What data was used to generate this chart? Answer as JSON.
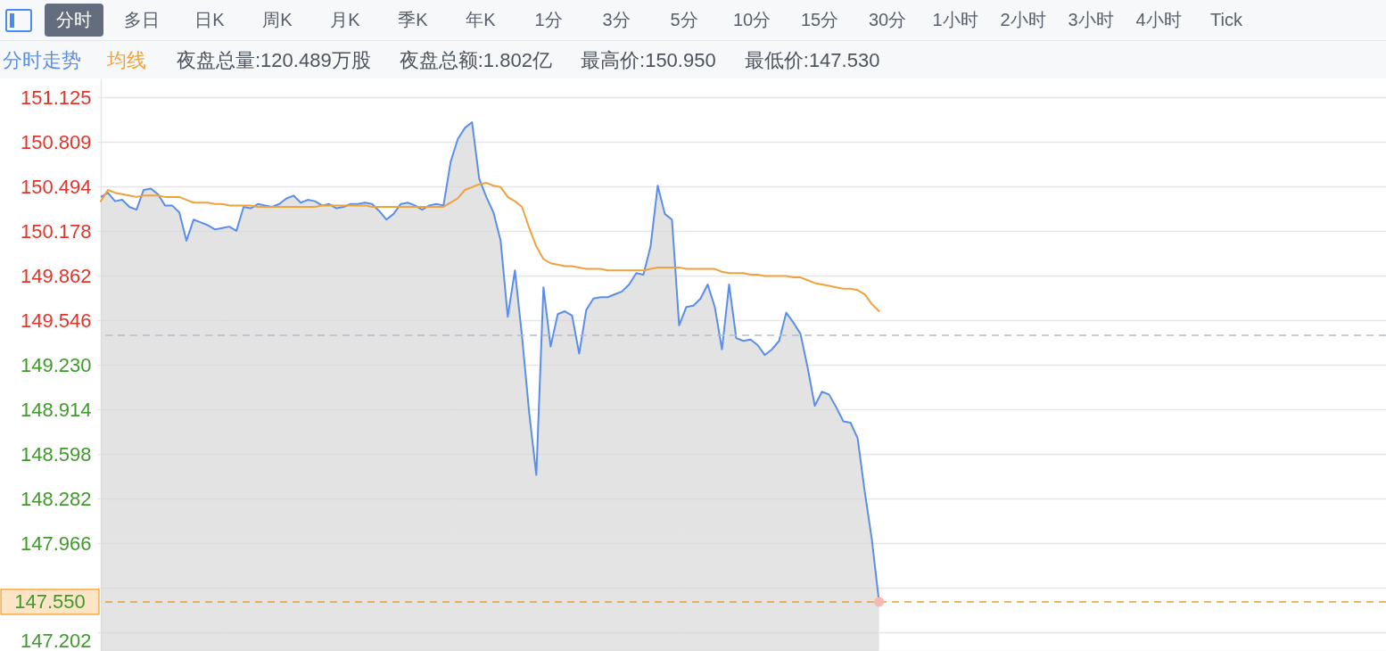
{
  "chart_data": {
    "type": "line",
    "subtitle": "夜盘总量:120.489万股 夜盘总额:1.802亿 最高价:150.950 最低价:147.530",
    "annotations": [
      "分时",
      "多日",
      "日K",
      "周K",
      "月K",
      "季K",
      "年K",
      "1分",
      "3分",
      "5分",
      "10分",
      "15分",
      "30分",
      "1小时",
      "2小时",
      "3小时",
      "4小时",
      "Tick"
    ],
    "categories": [
      null,
      null,
      null,
      null,
      null,
      null,
      null,
      null,
      null,
      null,
      null,
      null,
      null,
      null,
      null,
      null,
      null,
      null,
      null,
      null,
      null,
      null,
      null,
      null,
      null,
      null,
      null,
      null,
      null,
      null,
      null,
      null,
      null,
      null,
      null,
      null,
      null,
      null,
      null,
      null,
      null,
      null,
      null,
      null,
      null,
      null,
      null,
      null,
      null,
      null,
      null,
      null,
      null,
      null,
      null,
      null,
      null,
      null,
      null,
      null,
      null,
      null,
      null,
      null,
      null,
      null,
      null,
      null,
      null,
      null,
      null,
      null,
      null,
      null,
      null,
      null,
      null,
      null,
      null,
      null,
      null,
      null,
      null,
      null,
      null,
      null,
      null,
      null,
      null,
      null,
      null,
      null,
      null,
      null,
      null,
      null,
      null,
      null,
      null,
      null,
      null,
      null,
      null,
      null,
      null,
      null,
      null,
      null,
      null,
      null,
      null,
      null,
      null,
      null,
      null,
      null,
      null,
      null,
      null,
      null,
      null,
      null,
      null,
      null,
      null,
      null,
      null,
      null,
      null,
      null,
      null,
      null,
      null,
      null,
      null,
      null,
      null,
      null,
      null,
      null,
      null,
      null,
      null,
      null,
      null,
      null,
      null,
      null,
      null,
      null,
      null,
      null,
      null,
      null,
      null,
      null,
      null,
      null,
      null,
      null,
      null,
      null,
      null,
      null,
      null,
      null,
      null,
      null,
      null,
      null,
      null,
      null,
      null,
      null,
      null,
      null,
      null,
      null,
      null,
      null,
      null
    ],
    "series": [
      {
        "name": "分时走势",
        "type": "area",
        "color": "#5a8ee8",
        "values": [
          150.42,
          150.45,
          150.39,
          150.4,
          150.35,
          150.33,
          150.47,
          150.48,
          150.44,
          150.36,
          150.36,
          150.31,
          150.11,
          150.26,
          150.24,
          150.22,
          150.19,
          150.2,
          150.21,
          150.18,
          150.35,
          150.34,
          150.37,
          150.36,
          150.35,
          150.37,
          150.41,
          150.43,
          150.38,
          150.4,
          150.39,
          150.36,
          150.37,
          150.34,
          150.35,
          150.37,
          150.37,
          150.38,
          150.37,
          150.32,
          150.26,
          150.3,
          150.37,
          150.38,
          150.36,
          150.33,
          150.36,
          150.37,
          150.36,
          150.67,
          150.83,
          150.91,
          150.95,
          150.55,
          150.42,
          150.31,
          150.11,
          149.57,
          149.9,
          149.43,
          148.89,
          148.45,
          149.78,
          149.36,
          149.59,
          149.61,
          149.58,
          149.31,
          149.62,
          149.7,
          149.71,
          149.71,
          149.73,
          149.75,
          149.8,
          149.88,
          149.87,
          150.07,
          150.5,
          150.3,
          150.26,
          149.51,
          149.64,
          149.65,
          149.7,
          149.8,
          149.64,
          149.34,
          149.8,
          149.42,
          149.4,
          149.41,
          149.37,
          149.3,
          149.34,
          149.4,
          149.6,
          149.53,
          149.45,
          149.21,
          148.94,
          149.04,
          149.02,
          148.93,
          148.83,
          148.82,
          148.71,
          148.33,
          147.99,
          147.55,
          null,
          null,
          null,
          null,
          null,
          null,
          null,
          null,
          null,
          null,
          null,
          null,
          null,
          null,
          null,
          null,
          null,
          null,
          null,
          null,
          null,
          null,
          null,
          null,
          null,
          null,
          null,
          null,
          null,
          null,
          null,
          null,
          null,
          null,
          null,
          null,
          null,
          null,
          null,
          null,
          null,
          null,
          null,
          null,
          null,
          null,
          null,
          null,
          null,
          null,
          null,
          null,
          null,
          null,
          null,
          null,
          null,
          null,
          null,
          null,
          null,
          null,
          null,
          null,
          null,
          null,
          null,
          null,
          null,
          null,
          null
        ]
      },
      {
        "name": "均线",
        "color": "#eea23a",
        "values": [
          150.39,
          150.47,
          150.45,
          150.44,
          150.43,
          150.42,
          150.43,
          150.43,
          150.43,
          150.42,
          150.42,
          150.42,
          150.4,
          150.38,
          150.38,
          150.38,
          150.37,
          150.37,
          150.36,
          150.36,
          150.36,
          150.36,
          150.35,
          150.35,
          150.35,
          150.35,
          150.35,
          150.35,
          150.35,
          150.35,
          150.35,
          150.36,
          150.36,
          150.36,
          150.36,
          150.36,
          150.36,
          150.36,
          150.35,
          150.35,
          150.35,
          150.35,
          150.35,
          150.35,
          150.35,
          150.35,
          150.35,
          150.35,
          150.35,
          150.38,
          150.41,
          150.47,
          150.49,
          150.51,
          150.52,
          150.5,
          150.49,
          150.42,
          150.39,
          150.35,
          150.2,
          150.07,
          149.98,
          149.95,
          149.94,
          149.93,
          149.93,
          149.92,
          149.91,
          149.91,
          149.91,
          149.9,
          149.9,
          149.9,
          149.9,
          149.9,
          149.9,
          149.91,
          149.92,
          149.92,
          149.92,
          149.92,
          149.91,
          149.91,
          149.91,
          149.91,
          149.91,
          149.89,
          149.88,
          149.88,
          149.88,
          149.87,
          149.87,
          149.86,
          149.86,
          149.86,
          149.86,
          149.85,
          149.85,
          149.83,
          149.81,
          149.8,
          149.79,
          149.78,
          149.77,
          149.77,
          149.76,
          149.73,
          149.66,
          149.61,
          null,
          null,
          null,
          null,
          null,
          null,
          null,
          null,
          null,
          null,
          null,
          null,
          null,
          null,
          null,
          null,
          null,
          null,
          null,
          null,
          null,
          null,
          null,
          null,
          null,
          null,
          null,
          null,
          null,
          null,
          null,
          null,
          null,
          null,
          null,
          null,
          null,
          null,
          null,
          null,
          null,
          null,
          null,
          null,
          null,
          null,
          null,
          null,
          null,
          null,
          null,
          null,
          null,
          null,
          null,
          null,
          null,
          null,
          null,
          null,
          null,
          null,
          null,
          null,
          null,
          null,
          null,
          null,
          null,
          null,
          null
        ]
      },
      {
        "color": "#f6b8b0",
        "values": [
          null,
          null,
          null,
          null,
          null,
          null,
          null,
          null,
          null,
          null,
          null,
          null,
          null,
          null,
          null,
          null,
          null,
          null,
          null,
          null,
          null,
          null,
          null,
          null,
          null,
          null,
          null,
          null,
          null,
          null,
          null,
          null,
          null,
          null,
          null,
          null,
          null,
          null,
          null,
          null,
          null,
          null,
          null,
          null,
          null,
          null,
          null,
          null,
          null,
          null,
          null,
          null,
          null,
          null,
          null,
          null,
          null,
          null,
          null,
          null,
          null,
          null,
          null,
          null,
          null,
          null,
          null,
          null,
          null,
          null,
          null,
          null,
          null,
          null,
          null,
          null,
          null,
          null,
          null,
          null,
          null,
          null,
          null,
          null,
          null,
          null,
          null,
          null,
          null,
          null,
          null,
          null,
          null,
          null,
          null,
          null,
          null,
          null,
          null,
          null,
          null,
          null,
          null,
          null,
          null,
          null,
          null,
          null,
          null,
          147.55,
          null,
          null,
          null,
          null,
          null,
          null,
          null,
          null,
          null,
          null,
          null,
          null,
          null,
          null,
          null,
          null,
          null,
          null,
          null,
          null,
          null,
          null,
          null,
          null,
          null,
          null,
          null,
          null,
          null,
          null,
          null,
          null,
          null,
          null,
          null,
          null,
          null,
          null,
          null,
          null,
          null,
          null,
          null,
          null,
          null,
          null,
          null,
          null,
          null,
          null,
          null,
          null,
          null,
          null,
          null,
          null,
          null,
          null,
          null,
          null,
          null,
          null,
          null,
          null,
          null,
          null,
          null,
          null,
          null,
          null,
          null
        ],
        "type": "scatter"
      }
    ],
    "ylim": [
      147.202,
      151.26
    ],
    "yticks": [
      147.202,
      {
        "value": 147.335,
        "label": null
      },
      {
        "value": 147.651,
        "label": null
      },
      147.966,
      148.282,
      148.598,
      148.914,
      {
        "value": 149.23,
        "label": "149.230"
      },
      149.546,
      149.862,
      150.178,
      150.494,
      150.809,
      151.125
    ],
    "ref_lines": [
      {
        "axis": "y",
        "value": 149.44,
        "color": "#b3bccb",
        "line_style": "dashed"
      },
      {
        "axis": "y",
        "value": 147.55,
        "label": "147.550",
        "color": "#ef9d2f",
        "line_style": "dashed"
      }
    ],
    "grid": "y",
    "legend": "top left",
    "tick_labels": "y"
  }
}
